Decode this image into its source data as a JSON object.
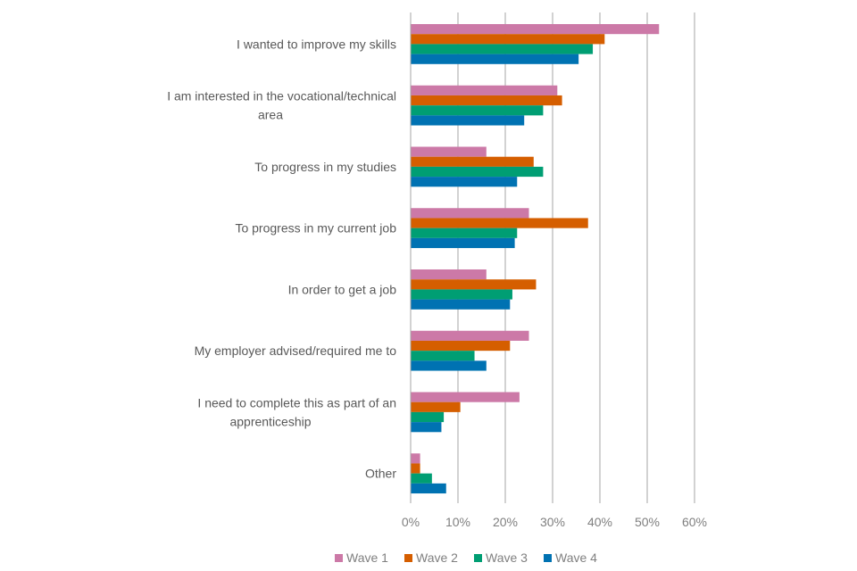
{
  "chart_data": {
    "type": "bar",
    "orientation": "horizontal",
    "categories": [
      [
        "I wanted to improve my skills"
      ],
      [
        "I am interested in the vocational/technical",
        "area"
      ],
      [
        "To progress in my studies"
      ],
      [
        "To progress in my current job"
      ],
      [
        "In order to get a job"
      ],
      [
        "My employer advised/required me to"
      ],
      [
        "I need to complete this as part of an",
        "apprenticeship"
      ],
      [
        "Other"
      ]
    ],
    "series": [
      {
        "name": "Wave 1",
        "color": "#CC79A7",
        "values": [
          52.5,
          31,
          16,
          25,
          16,
          25,
          23,
          2
        ]
      },
      {
        "name": "Wave 2",
        "color": "#D55E00",
        "values": [
          41,
          32,
          26,
          37.5,
          26.5,
          21,
          10.5,
          2
        ]
      },
      {
        "name": "Wave 3",
        "color": "#009E73",
        "values": [
          38.5,
          28,
          28,
          22.5,
          21.5,
          13.5,
          7,
          4.5
        ]
      },
      {
        "name": "Wave 4",
        "color": "#0072B2",
        "values": [
          35.5,
          24,
          22.5,
          22,
          21,
          16,
          6.5,
          7.5
        ]
      }
    ],
    "xlim": [
      0,
      60
    ],
    "x_ticks": [
      "0%",
      "10%",
      "20%",
      "30%",
      "40%",
      "50%",
      "60%"
    ],
    "grid": true,
    "legend_position": "bottom",
    "gridline_color": "#a6a6a6"
  }
}
